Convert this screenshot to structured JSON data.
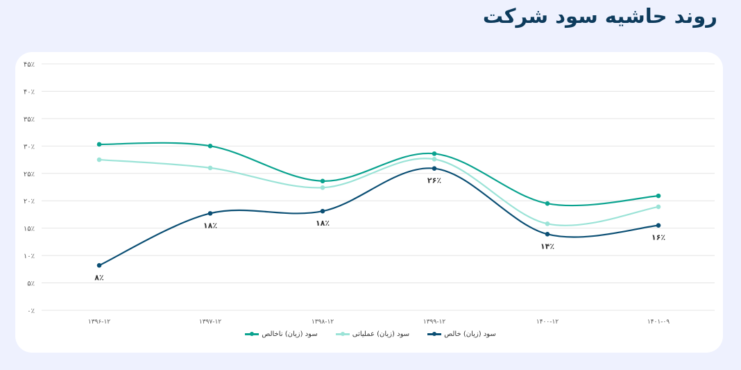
{
  "title": "روند حاشیه سود شرکت",
  "chart_data": {
    "type": "line",
    "title": "روند حاشیه سود شرکت",
    "categories": [
      "۱۳۹۶-۱۲",
      "۱۳۹۷-۱۲",
      "۱۳۹۸-۱۲",
      "۱۳۹۹-۱۲",
      "۱۴۰۰-۱۲",
      "۱۴۰۱-۰۹"
    ],
    "y_ticks": [
      "۰٪",
      "۵٪",
      "۱۰٪",
      "۱۵٪",
      "۲۰٪",
      "۲۵٪",
      "۳۰٪",
      "۳۵٪",
      "۴۰٪",
      "۴۵٪"
    ],
    "ylim": [
      0,
      45
    ],
    "grid": true,
    "legend_position": "bottom",
    "series": [
      {
        "name": "سود (زیان) ناخالص",
        "color": "#0aa38f",
        "values": [
          30.3,
          30.0,
          23.6,
          28.6,
          19.5,
          20.9
        ]
      },
      {
        "name": "سود (زیان) عملیاتی",
        "color": "#9be3d7",
        "values": [
          27.5,
          26.0,
          22.4,
          27.6,
          15.8,
          18.9
        ]
      },
      {
        "name": "سود (زیان) خالص",
        "color": "#0b4f74",
        "values": [
          8.2,
          17.7,
          18.1,
          25.9,
          13.9,
          15.5
        ],
        "data_labels": [
          "۸٪",
          "۱۸٪",
          "۱۸٪",
          "۲۶٪",
          "۱۴٪",
          "۱۶٪"
        ]
      }
    ]
  }
}
